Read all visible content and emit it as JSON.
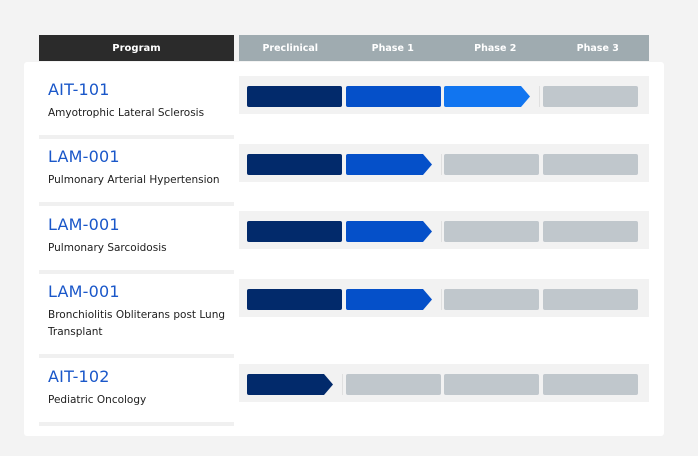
{
  "header": {
    "program_label": "Program",
    "phases": [
      "Preclinical",
      "Phase 1",
      "Phase 2",
      "Phase 3"
    ]
  },
  "colors": {
    "preclinical": "#022a6b",
    "phase1": "#0550c9",
    "phase2": "#1175f0",
    "empty": "#c0c7cc"
  },
  "programs": [
    {
      "code": "AIT-101",
      "indication": "Amyotrophic Lateral Sclerosis",
      "stage": "Phase 2",
      "progress": 3
    },
    {
      "code": "LAM-001",
      "indication": "Pulmonary Arterial Hypertension",
      "stage": "Phase 1",
      "progress": 2
    },
    {
      "code": "LAM-001",
      "indication": "Pulmonary Sarcoidosis",
      "stage": "Phase 1",
      "progress": 2
    },
    {
      "code": "LAM-001",
      "indication": "Bronchiolitis Obliterans post Lung Transplant",
      "stage": "Phase 1",
      "progress": 2
    },
    {
      "code": "AIT-102",
      "indication": "Pediatric Oncology",
      "stage": "Preclinical",
      "progress": 1
    }
  ]
}
